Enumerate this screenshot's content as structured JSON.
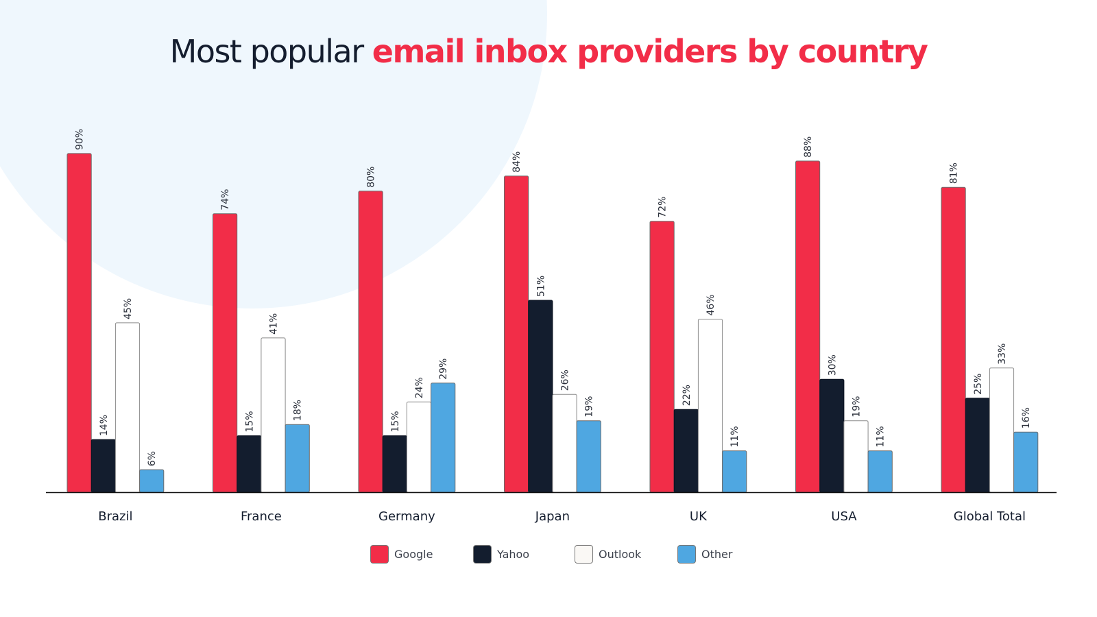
{
  "title": {
    "prefix": "Most popular ",
    "highlight": "email inbox providers by country"
  },
  "colors": {
    "google": "#f22d48",
    "yahoo": "#131d2e",
    "outlook": "#ffffff",
    "other": "#4fa7e1",
    "accent": "#f22d48",
    "text": "#141d2e",
    "background_circle": "#eff7fd"
  },
  "legend": [
    {
      "label": "Google",
      "color": "#f22d48"
    },
    {
      "label": "Yahoo",
      "color": "#131d2e"
    },
    {
      "label": "Outlook",
      "color": "#faf8f5"
    },
    {
      "label": "Other",
      "color": "#4fa7e1"
    }
  ],
  "chart_data": {
    "type": "bar",
    "title": "Most popular email inbox providers by country",
    "xlabel": "",
    "ylabel": "",
    "ylim": [
      0,
      100
    ],
    "grid": false,
    "legend_position": "bottom",
    "value_format": "percent",
    "categories": [
      "Brazil",
      "France",
      "Germany",
      "Japan",
      "UK",
      "USA",
      "Global Total"
    ],
    "series": [
      {
        "name": "Google",
        "color": "#f22d48",
        "values": [
          90,
          74,
          80,
          84,
          72,
          88,
          81
        ]
      },
      {
        "name": "Yahoo",
        "color": "#131d2e",
        "values": [
          14,
          15,
          15,
          51,
          22,
          30,
          25
        ]
      },
      {
        "name": "Outlook",
        "color": "#ffffff",
        "values": [
          45,
          41,
          24,
          26,
          46,
          19,
          33
        ]
      },
      {
        "name": "Other",
        "color": "#4fa7e1",
        "values": [
          6,
          18,
          29,
          19,
          11,
          11,
          16
        ]
      }
    ]
  }
}
